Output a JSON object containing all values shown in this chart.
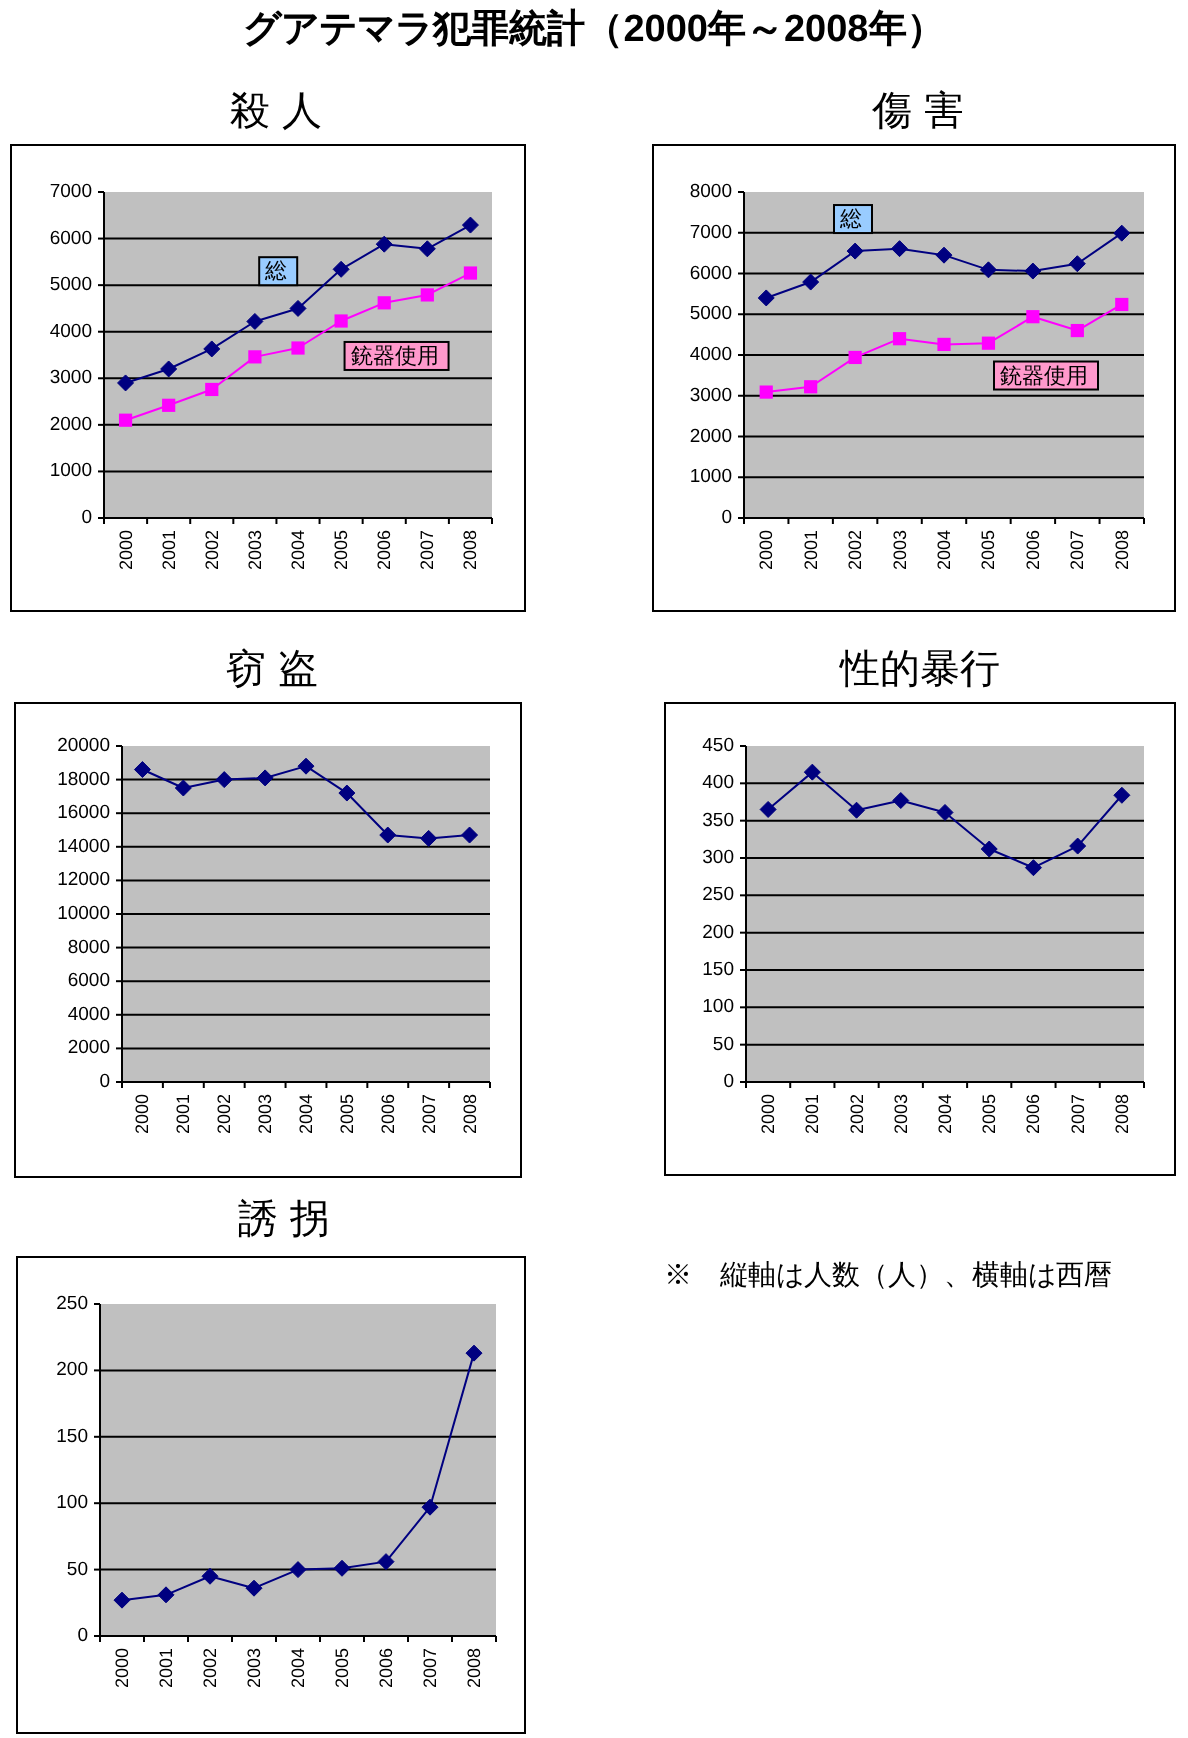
{
  "chart_data": [
    {
      "type": "other",
      "title": "グアテマラ犯罪統計（2000年～2008年）"
    },
    {
      "type": "line",
      "title": "殺 人",
      "categories": [
        "2000",
        "2001",
        "2002",
        "2003",
        "2004",
        "2005",
        "2006",
        "2007",
        "2008"
      ],
      "series": [
        {
          "name": "総",
          "color": "#000080",
          "marker": "diamond",
          "values": [
            2900,
            3200,
            3630,
            4220,
            4500,
            5340,
            5880,
            5780,
            6290
          ]
        },
        {
          "name": "銃器使用",
          "color": "#ff00ff",
          "marker": "square",
          "values": [
            2100,
            2420,
            2760,
            3460,
            3650,
            4230,
            4620,
            4790,
            5260
          ]
        }
      ],
      "ylim": [
        0,
        7000
      ],
      "yticks": [
        0,
        1000,
        2000,
        3000,
        4000,
        5000,
        6000,
        7000
      ],
      "grid": "y"
    },
    {
      "type": "line",
      "title": "傷 害",
      "categories": [
        "2000",
        "2001",
        "2002",
        "2003",
        "2004",
        "2005",
        "2006",
        "2007",
        "2008"
      ],
      "series": [
        {
          "name": "総",
          "color": "#000080",
          "marker": "diamond",
          "values": [
            5400,
            5790,
            6550,
            6610,
            6450,
            6090,
            6060,
            6240,
            6990
          ]
        },
        {
          "name": "銃器使用",
          "color": "#ff00ff",
          "marker": "square",
          "values": [
            3090,
            3220,
            3940,
            4400,
            4260,
            4290,
            4940,
            4600,
            5240
          ]
        }
      ],
      "ylim": [
        0,
        8000
      ],
      "yticks": [
        0,
        1000,
        2000,
        3000,
        4000,
        5000,
        6000,
        7000,
        8000
      ],
      "grid": "y"
    },
    {
      "type": "line",
      "title": "窃 盗",
      "categories": [
        "2000",
        "2001",
        "2002",
        "2003",
        "2004",
        "2005",
        "2006",
        "2007",
        "2008"
      ],
      "series": [
        {
          "color": "#000080",
          "marker": "diamond",
          "values": [
            18600,
            17500,
            18000,
            18100,
            18800,
            17200,
            14700,
            14500,
            14700
          ]
        }
      ],
      "ylim": [
        0,
        20000
      ],
      "yticks": [
        0,
        2000,
        4000,
        6000,
        8000,
        10000,
        12000,
        14000,
        16000,
        18000,
        20000
      ],
      "grid": "y"
    },
    {
      "type": "line",
      "title": "性的暴行",
      "categories": [
        "2000",
        "2001",
        "2002",
        "2003",
        "2004",
        "2005",
        "2006",
        "2007",
        "2008"
      ],
      "series": [
        {
          "color": "#000080",
          "marker": "diamond",
          "values": [
            365,
            415,
            364,
            377,
            361,
            312,
            287,
            316,
            384
          ]
        }
      ],
      "ylim": [
        0,
        450
      ],
      "yticks": [
        0,
        50,
        100,
        150,
        200,
        250,
        300,
        350,
        400,
        450
      ],
      "grid": "y"
    },
    {
      "type": "line",
      "title": "誘 拐",
      "categories": [
        "2000",
        "2001",
        "2002",
        "2003",
        "2004",
        "2005",
        "2006",
        "2007",
        "2008"
      ],
      "series": [
        {
          "color": "#000080",
          "marker": "diamond",
          "values": [
            27,
            31,
            45,
            36,
            50,
            51,
            56,
            97,
            213
          ]
        }
      ],
      "ylim": [
        0,
        250
      ],
      "yticks": [
        0,
        50,
        100,
        150,
        200,
        250
      ],
      "grid": "y"
    },
    {
      "type": "other",
      "annotations": [
        "※　縦軸は人数（人）、横軸は西暦"
      ]
    }
  ]
}
